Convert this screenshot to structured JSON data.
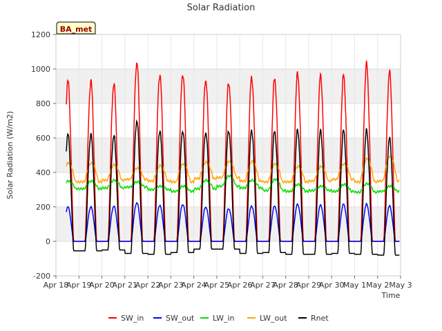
{
  "chart_data": {
    "type": "line",
    "title": "Solar Radiation",
    "xlabel": "Time",
    "ylabel": "Solar Radiation (W/m2)",
    "badge": "BA_met",
    "xlim_days": [
      "Apr 18",
      "May 3"
    ],
    "ylim": [
      -200,
      1200
    ],
    "yticks": [
      -200,
      0,
      200,
      400,
      600,
      800,
      1000,
      1200
    ],
    "xticks": [
      "Apr 18",
      "Apr 19",
      "Apr 20",
      "Apr 21",
      "Apr 22",
      "Apr 23",
      "Apr 24",
      "Apr 25",
      "Apr 26",
      "Apr 27",
      "Apr 28",
      "Apr 29",
      "Apr 30",
      "May 1",
      "May 2",
      "May 3"
    ],
    "grid": true,
    "legend_position": "bottom",
    "series": [
      {
        "name": "SW_in",
        "color": "#ff0000",
        "daily_peaks": [
          930,
          915,
          1040,
          970,
          975,
          940,
          925,
          955,
          945,
          975,
          960,
          960,
          1025,
          980
        ]
      },
      {
        "name": "SW_out",
        "color": "#0000ff",
        "daily_peaks": [
          200,
          205,
          225,
          210,
          215,
          200,
          190,
          205,
          205,
          215,
          210,
          215,
          215,
          205
        ]
      },
      {
        "name": "LW_in",
        "color": "#00dd00",
        "night_values": [
          305,
          310,
          315,
          300,
          290,
          305,
          320,
          310,
          295,
          290,
          295,
          290,
          285,
          290
        ],
        "day_peaks": [
          350,
          355,
          345,
          320,
          320,
          355,
          380,
          355,
          360,
          330,
          320,
          330,
          335,
          320
        ]
      },
      {
        "name": "LW_out",
        "color": "#ffa500",
        "night_values": [
          345,
          355,
          360,
          350,
          345,
          365,
          370,
          350,
          345,
          345,
          350,
          360,
          345,
          350
        ],
        "day_peaks": [
          455,
          445,
          425,
          440,
          450,
          460,
          465,
          465,
          450,
          435,
          435,
          450,
          480,
          495
        ]
      },
      {
        "name": "Rnet",
        "color": "#000000",
        "night_values": [
          -55,
          -50,
          -70,
          -75,
          -65,
          -45,
          -45,
          -70,
          -65,
          -75,
          -75,
          -70,
          -75,
          -80
        ],
        "daily_peaks": [
          620,
          615,
          700,
          645,
          645,
          635,
          645,
          645,
          640,
          645,
          640,
          640,
          640,
          595
        ]
      }
    ]
  }
}
